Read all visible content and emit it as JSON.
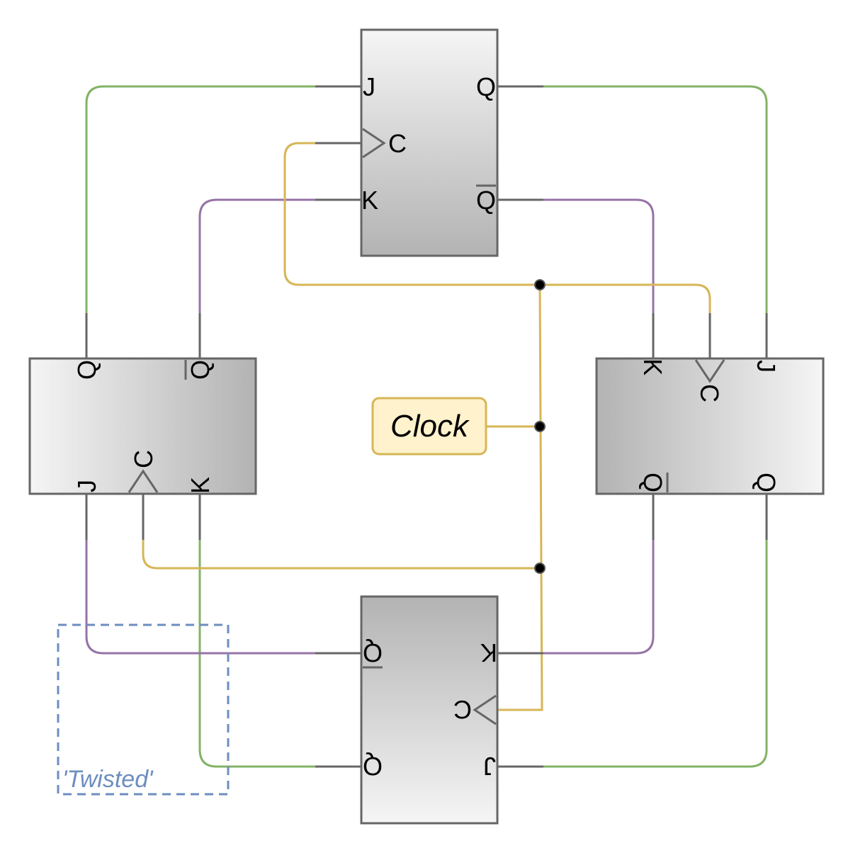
{
  "colors": {
    "q_to_j": "#82b366",
    "qbar_to_k": "#9673a6",
    "clock": "#d6b656",
    "clock_fill": "#fff2cc",
    "twisted": "#6c8ebf",
    "border": "#666666"
  },
  "clock": {
    "label": "Clock"
  },
  "twisted": {
    "label": "'Twisted'"
  },
  "flipflops": [
    {
      "id": "top",
      "orientation": "0deg",
      "pins": {
        "j": "J",
        "c": "C",
        "k": "K",
        "q": "Q",
        "qbar": "Q"
      }
    },
    {
      "id": "right",
      "orientation": "90deg",
      "pins": {
        "j": "J",
        "c": "C",
        "k": "K",
        "q": "Q",
        "qbar": "Q"
      }
    },
    {
      "id": "bottom",
      "orientation": "180deg",
      "pins": {
        "j": "J",
        "c": "C",
        "k": "K",
        "q": "Q",
        "qbar": "Q"
      }
    },
    {
      "id": "left",
      "orientation": "270deg",
      "pins": {
        "j": "J",
        "c": "C",
        "k": "K",
        "q": "Q",
        "qbar": "Q"
      }
    }
  ]
}
